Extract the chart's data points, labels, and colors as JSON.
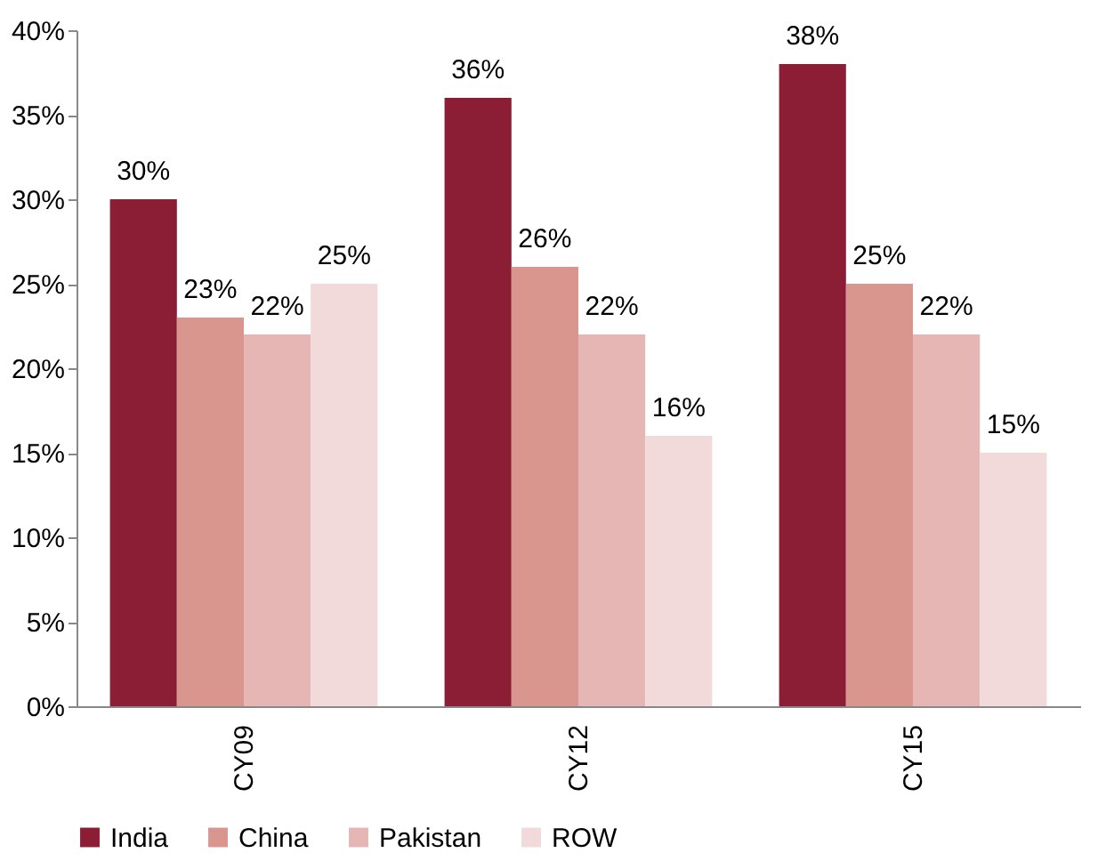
{
  "chart_data": {
    "type": "bar",
    "categories": [
      "CY09",
      "CY12",
      "CY15"
    ],
    "series": [
      {
        "name": "India",
        "color": "#8b1e35",
        "values": [
          30,
          36,
          38
        ],
        "value_labels": [
          "30%",
          "36%",
          "38%"
        ]
      },
      {
        "name": "China",
        "color": "#d8968f",
        "values": [
          23,
          26,
          25
        ],
        "value_labels": [
          "23%",
          "26%",
          "25%"
        ]
      },
      {
        "name": "Pakistan",
        "color": "#e6b6b5",
        "values": [
          22,
          22,
          22
        ],
        "value_labels": [
          "22%",
          "22%",
          "22%"
        ]
      },
      {
        "name": "ROW",
        "color": "#f2dadb",
        "values": [
          25,
          16,
          15
        ],
        "value_labels": [
          "25%",
          "16%",
          "15%"
        ]
      }
    ],
    "ylim": [
      0,
      40
    ],
    "yticks": [
      {
        "value": 0,
        "label": "0%"
      },
      {
        "value": 5,
        "label": "5%"
      },
      {
        "value": 10,
        "label": "10%"
      },
      {
        "value": 15,
        "label": "15%"
      },
      {
        "value": 20,
        "label": "20%"
      },
      {
        "value": 25,
        "label": "25%"
      },
      {
        "value": 30,
        "label": "30%"
      },
      {
        "value": 35,
        "label": "35%"
      },
      {
        "value": 40,
        "label": "40%"
      }
    ],
    "grid": false,
    "legend": "bottom"
  }
}
